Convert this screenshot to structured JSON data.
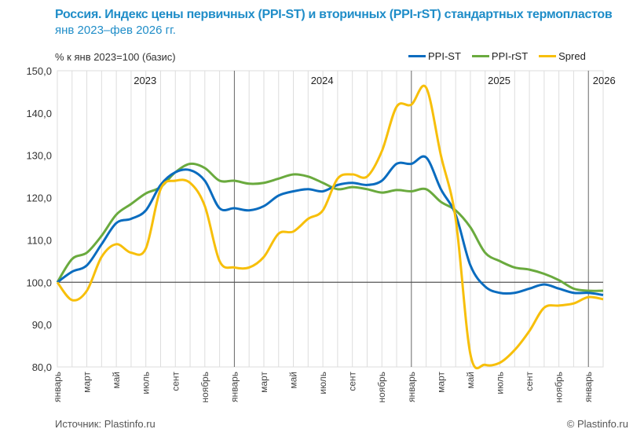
{
  "chart_data": {
    "type": "line",
    "title": "Россия. Индекс цены первичных (PPI-ST) и вторичных (PPI-rST) стандартных термопластов",
    "subtitle": "янв 2023–фев 2026 гг.",
    "ylabel": "% к янв 2023=100 (базис)",
    "ylim": [
      80,
      150
    ],
    "yticks": [
      "80,0",
      "90,0",
      "100,0",
      "110,0",
      "120,0",
      "130,0",
      "140,0",
      "150,0"
    ],
    "year_labels": [
      "2023",
      "2024",
      "2025",
      "2026"
    ],
    "xtick_labels": [
      "январь",
      "март",
      "май",
      "июль",
      "сент",
      "ноябрь",
      "январь",
      "март",
      "май",
      "июль",
      "сент",
      "ноябрь",
      "январь",
      "март",
      "май",
      "июль",
      "сент",
      "ноябрь",
      "январь"
    ],
    "x": [
      "2023-01",
      "2023-02",
      "2023-03",
      "2023-04",
      "2023-05",
      "2023-06",
      "2023-07",
      "2023-08",
      "2023-09",
      "2023-10",
      "2023-11",
      "2023-12",
      "2024-01",
      "2024-02",
      "2024-03",
      "2024-04",
      "2024-05",
      "2024-06",
      "2024-07",
      "2024-08",
      "2024-09",
      "2024-10",
      "2024-11",
      "2024-12",
      "2025-01",
      "2025-02",
      "2025-03",
      "2025-04",
      "2025-05",
      "2025-06",
      "2025-07",
      "2025-08",
      "2025-09",
      "2025-10",
      "2025-11",
      "2025-12",
      "2026-01",
      "2026-02"
    ],
    "baseline": 100,
    "legend_position": "top-right",
    "series": [
      {
        "name": "PPI-ST",
        "color": "#0a6cbf",
        "values": [
          100,
          102.5,
          104,
          109,
          114,
          115,
          117,
          123,
          126,
          126.5,
          124,
          117.5,
          117.5,
          117,
          118,
          120.5,
          121.5,
          122,
          121.5,
          123,
          123.5,
          123,
          124,
          128,
          128,
          129.5,
          122,
          116,
          104,
          99,
          97.5,
          97.5,
          98.5,
          99.5,
          98.5,
          97.5,
          97.5,
          97
        ]
      },
      {
        "name": "PPI-rST",
        "color": "#6aaa3e",
        "values": [
          100,
          105.5,
          107,
          111,
          116,
          118.5,
          121,
          122.5,
          126,
          128,
          127,
          124,
          124,
          123.3,
          123.5,
          124.5,
          125.5,
          125,
          123.5,
          122,
          122.5,
          122,
          121.2,
          121.8,
          121.5,
          122,
          119,
          117,
          113,
          107,
          105,
          103.5,
          103,
          102,
          100.5,
          98.5,
          98,
          98
        ]
      },
      {
        "name": "Spred",
        "color": "#f7bf0a",
        "values": [
          100,
          95.8,
          98,
          106,
          109,
          107,
          108,
          122,
          124,
          123.5,
          118,
          105,
          103.5,
          103.5,
          106,
          111.5,
          112,
          115,
          117,
          124.5,
          125.5,
          125,
          131,
          141.5,
          142,
          146,
          130,
          115,
          83,
          80.5,
          81,
          84,
          88.5,
          94,
          94.5,
          95,
          96.5,
          96
        ]
      }
    ]
  },
  "footer": {
    "source": "Источник: Plastinfo.ru",
    "copyright": "© Plastinfo.ru"
  }
}
